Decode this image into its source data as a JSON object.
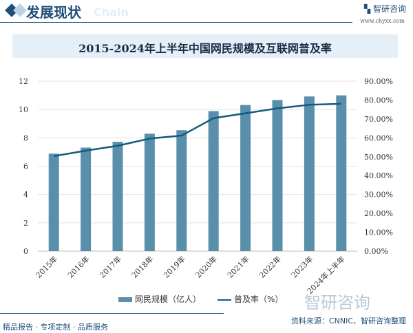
{
  "header": {
    "section_title": "发展现状",
    "ghost_text": "Chain",
    "brand": "智研咨询",
    "brand_url": "www.chyxx.com"
  },
  "chart_data": {
    "type": "bar+line",
    "title": "2015-2024年上半年中国网民规模及互联网普及率",
    "categories": [
      "2015年",
      "2016年",
      "2017年",
      "2018年",
      "2019年",
      "2020年",
      "2021年",
      "2022年",
      "2023年",
      "2024年上半年"
    ],
    "series": [
      {
        "name": "网民规模（亿人）",
        "type": "bar",
        "axis": "left",
        "color": "#5a8fab",
        "values": [
          6.88,
          7.31,
          7.72,
          8.29,
          8.54,
          9.89,
          10.32,
          10.67,
          10.92,
          11.0
        ]
      },
      {
        "name": "普及率（%）",
        "type": "line",
        "axis": "right",
        "color": "#0f5b7c",
        "values": [
          50.3,
          53.2,
          55.8,
          59.6,
          61.2,
          70.4,
          73.0,
          75.6,
          77.5,
          78.0
        ]
      }
    ],
    "y_left": {
      "range": [
        0,
        12
      ],
      "ticks": [
        "0",
        "2",
        "4",
        "6",
        "8",
        "10",
        "12"
      ]
    },
    "y_right": {
      "range": [
        0,
        90
      ],
      "ticks": [
        "0.00%",
        "10.00%",
        "20.00%",
        "30.00%",
        "40.00%",
        "50.00%",
        "60.00%",
        "70.00%",
        "80.00%",
        "90.00%"
      ]
    },
    "grid": true,
    "legend": "bottom"
  },
  "footer": {
    "source": "资料来源：CNNIC、智研咨询整理",
    "tagline": "精品报告 · 专项定制 · 品质服务",
    "watermark": "智研咨询"
  }
}
